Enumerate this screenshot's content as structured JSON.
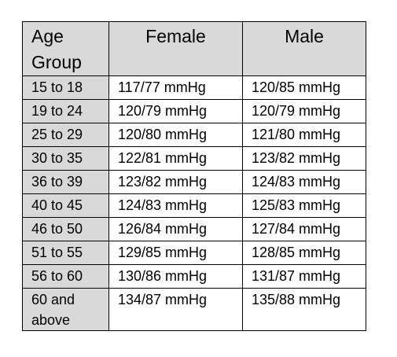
{
  "table": {
    "headers": {
      "age_line1": "Age",
      "age_line2": "Group",
      "female": "Female",
      "male": "Male"
    },
    "rows": [
      {
        "age": "15 to 18",
        "female": "117/77 mmHg",
        "male": "120/85 mmHg"
      },
      {
        "age": "19 to 24",
        "female": "120/79 mmHg",
        "male": "120/79 mmHg"
      },
      {
        "age": "25 to 29",
        "female": "120/80 mmHg",
        "male": "121/80 mmHg"
      },
      {
        "age": "30 to 35",
        "female": "122/81 mmHg",
        "male": "123/82 mmHg"
      },
      {
        "age": "36 to 39",
        "female": "123/82 mmHg",
        "male": "124/83 mmHg"
      },
      {
        "age": "40 to 45",
        "female": "124/83 mmHg",
        "male": "125/83 mmHg"
      },
      {
        "age": "46 to 50",
        "female": "126/84 mmHg",
        "male": "127/84 mmHg"
      },
      {
        "age": "51 to 55",
        "female": "129/85 mmHg",
        "male": "128/85 mmHg"
      },
      {
        "age": "56 to 60",
        "female": "130/86 mmHg",
        "male": "131/87 mmHg"
      }
    ],
    "last_row": {
      "age_line1": "60 and",
      "age_line2": "above",
      "female": "134/87 mmHg",
      "male": "135/88 mmHg"
    },
    "colors": {
      "header_bg": "#d9d9d9",
      "age_col_bg": "#d9d9d9",
      "border": "#000000"
    }
  }
}
